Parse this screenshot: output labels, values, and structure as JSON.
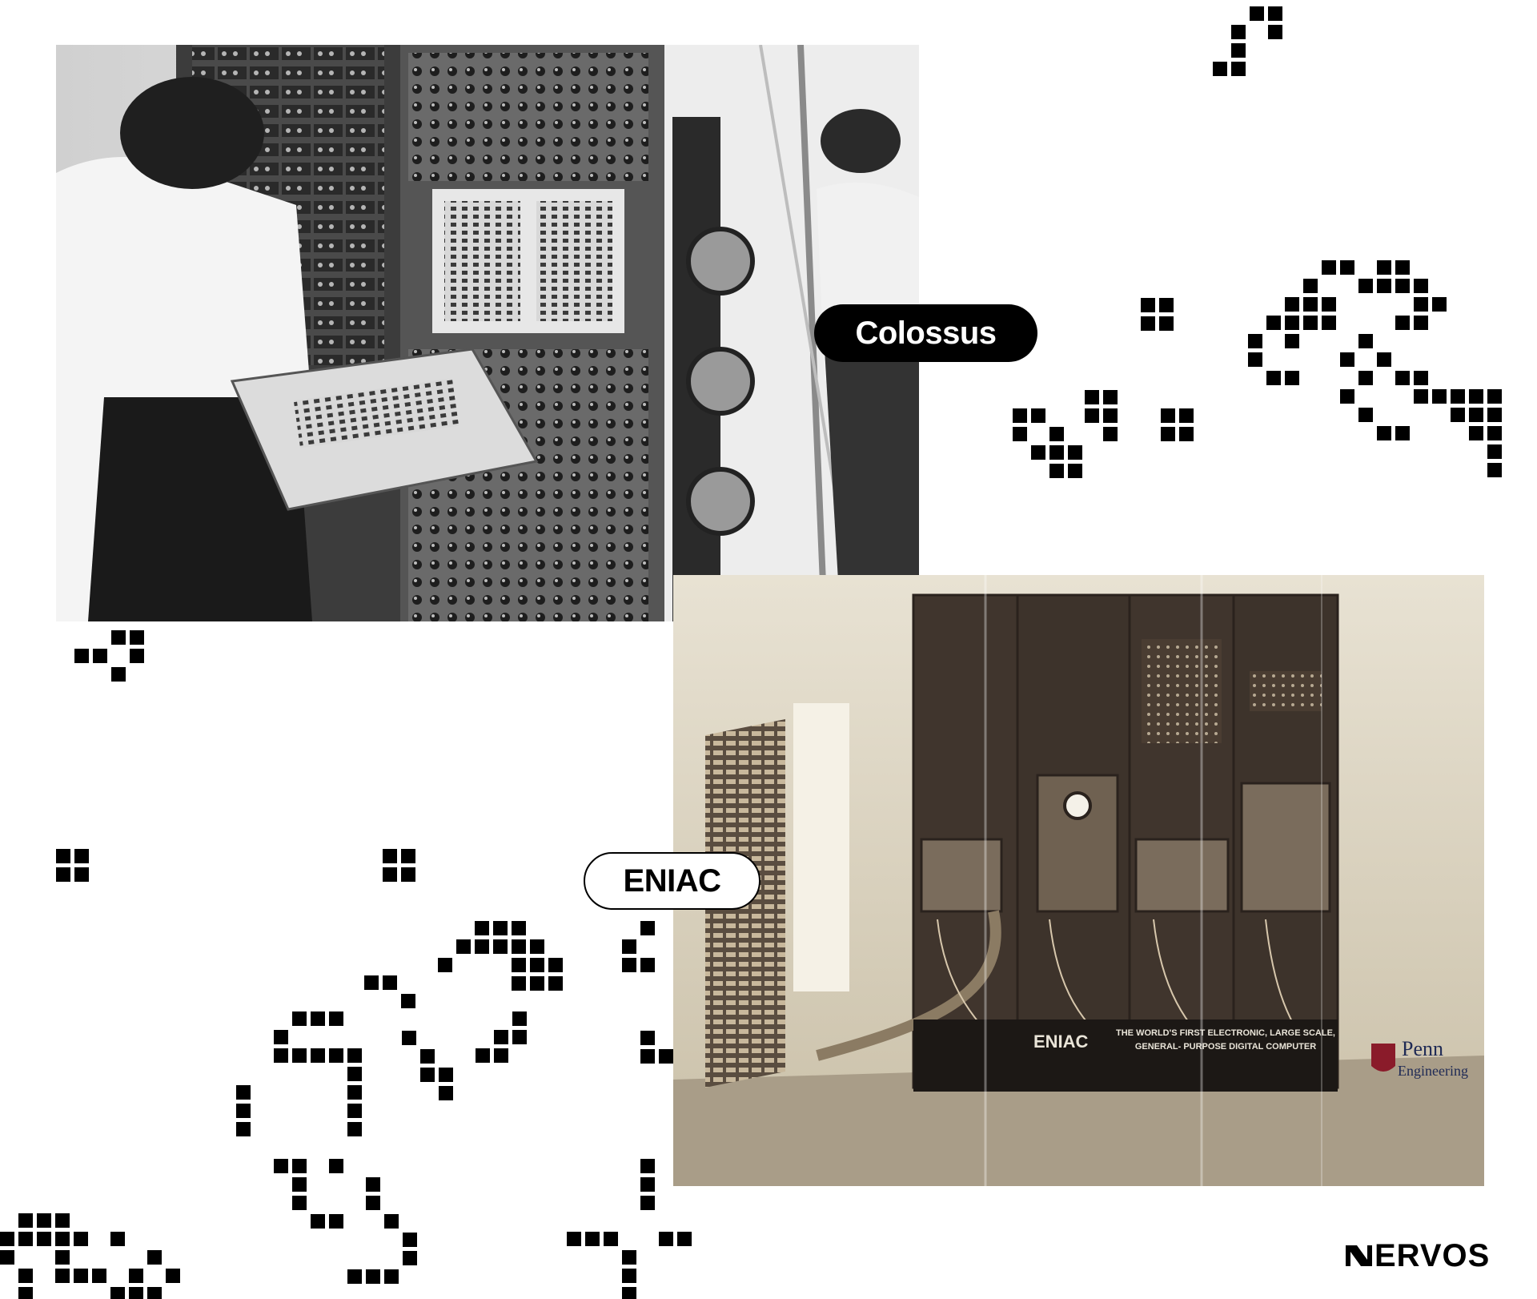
{
  "labels": {
    "colossus": "Colossus",
    "eniac": "ENIAC"
  },
  "logo": {
    "text": "ERVOS"
  },
  "eniac_photo": {
    "panel_text": "ENIAC",
    "caption_line1": "THE WORLD'S FIRST ELECTRONIC, LARGE SCALE,",
    "caption_line2": "GENERAL- PURPOSE DIGITAL COMPUTER",
    "sponsor_line1": "Penn",
    "sponsor_line2": "Engineering"
  },
  "colors": {
    "pixel": "#000000",
    "background": "#ffffff",
    "pill_dark": "#000000",
    "pill_light": "#ffffff"
  }
}
